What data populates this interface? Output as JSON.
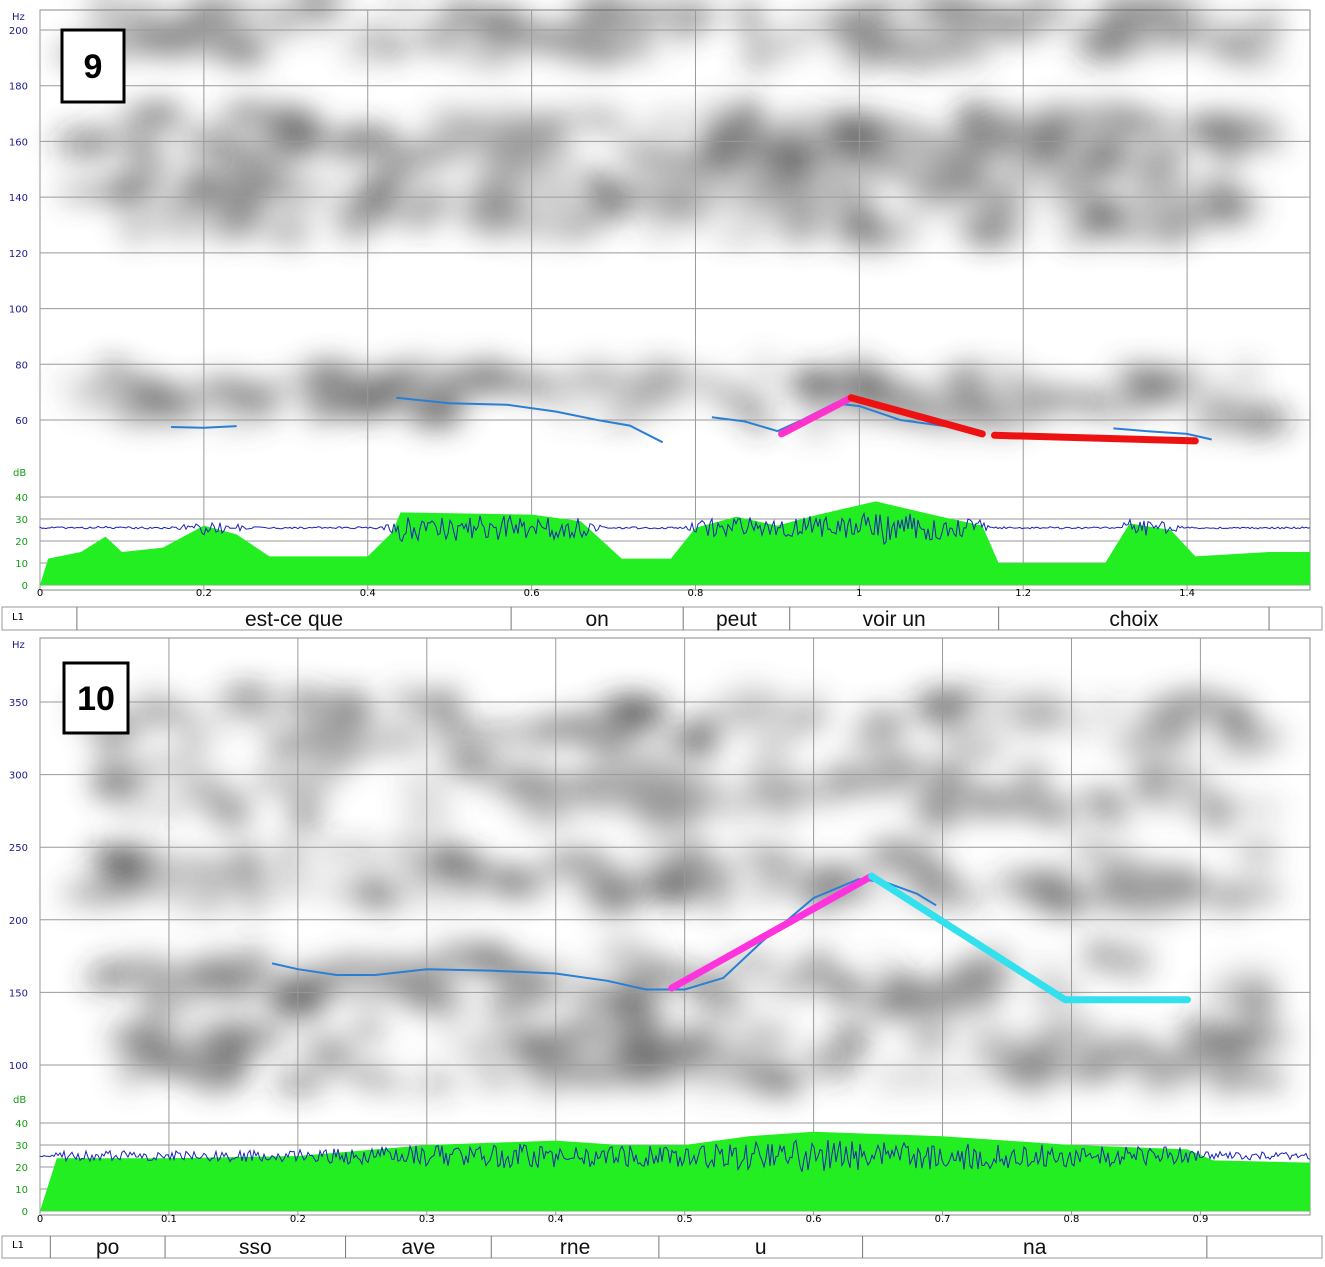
{
  "chart_data": [
    {
      "type": "line",
      "panel_label": "9",
      "xlim": [
        0,
        1.55
      ],
      "x_ticks": [
        "0",
        "0.2",
        "0.4",
        "0.6",
        "0.8",
        "1",
        "1.2",
        "1.4"
      ],
      "y_unit": "Hz",
      "ylim": [
        35,
        205
      ],
      "y_ticks": [
        "200",
        "180",
        "160",
        "140",
        "120",
        "100",
        "80",
        "60"
      ],
      "db_unit": "dB",
      "db_ticks": [
        "40",
        "30",
        "20",
        "10",
        "0"
      ],
      "track_label": "L1",
      "grid": true,
      "pitch_contour": [
        [
          [
            0.16,
            57.5
          ],
          [
            0.2,
            57.2
          ],
          [
            0.24,
            57.8
          ]
        ],
        [
          [
            0.435,
            68
          ],
          [
            0.5,
            66
          ],
          [
            0.57,
            65.5
          ],
          [
            0.63,
            63
          ],
          [
            0.68,
            60
          ],
          [
            0.72,
            58
          ],
          [
            0.76,
            52
          ]
        ],
        [
          [
            0.82,
            61
          ],
          [
            0.86,
            59.5
          ],
          [
            0.9,
            56
          ],
          [
            0.93,
            60
          ],
          [
            0.97,
            66
          ],
          [
            1.0,
            65
          ],
          [
            1.05,
            60
          ],
          [
            1.1,
            58
          ],
          [
            1.13,
            57
          ]
        ],
        [
          [
            1.31,
            57
          ],
          [
            1.35,
            56
          ],
          [
            1.4,
            55
          ],
          [
            1.43,
            53
          ]
        ]
      ],
      "stylized": [
        {
          "color": "#ff33cc",
          "points": [
            [
              0.905,
              55
            ],
            [
              0.99,
              68
            ]
          ]
        },
        {
          "color": "#ee1111",
          "points": [
            [
              0.99,
              68
            ],
            [
              1.15,
              55
            ]
          ]
        },
        {
          "color": "#ee1111",
          "points": [
            [
              1.165,
              54.5
            ],
            [
              1.41,
              52.5
            ]
          ]
        }
      ],
      "intensity_envelope": [
        [
          0,
          0
        ],
        [
          0.01,
          12
        ],
        [
          0.05,
          15
        ],
        [
          0.08,
          22
        ],
        [
          0.1,
          15
        ],
        [
          0.15,
          17
        ],
        [
          0.2,
          27
        ],
        [
          0.24,
          23
        ],
        [
          0.28,
          13
        ],
        [
          0.4,
          13
        ],
        [
          0.43,
          24
        ],
        [
          0.44,
          33
        ],
        [
          0.6,
          32
        ],
        [
          0.66,
          29
        ],
        [
          0.71,
          12
        ],
        [
          0.77,
          12
        ],
        [
          0.8,
          26
        ],
        [
          0.85,
          31
        ],
        [
          0.9,
          27
        ],
        [
          0.95,
          32
        ],
        [
          1.02,
          38
        ],
        [
          1.1,
          31
        ],
        [
          1.15,
          27
        ],
        [
          1.17,
          10
        ],
        [
          1.3,
          10
        ],
        [
          1.33,
          28
        ],
        [
          1.38,
          25
        ],
        [
          1.41,
          13
        ],
        [
          1.5,
          15
        ],
        [
          1.55,
          15
        ]
      ],
      "segments": [
        {
          "label": "est-ce que",
          "start": 0.045,
          "end": 0.575
        },
        {
          "label": "on",
          "start": 0.575,
          "end": 0.785
        },
        {
          "label": "peut",
          "start": 0.785,
          "end": 0.915
        },
        {
          "label": "voir un",
          "start": 0.915,
          "end": 1.17
        },
        {
          "label": "choix",
          "start": 1.17,
          "end": 1.5
        }
      ]
    },
    {
      "type": "line",
      "panel_label": "10",
      "xlim": [
        0,
        0.985
      ],
      "x_ticks": [
        "0",
        "0.1",
        "0.2",
        "0.3",
        "0.4",
        "0.5",
        "0.6",
        "0.7",
        "0.8",
        "0.9"
      ],
      "y_unit": "Hz",
      "ylim": [
        77,
        387
      ],
      "y_ticks": [
        "350",
        "300",
        "250",
        "200",
        "150",
        "100"
      ],
      "db_unit": "dB",
      "db_ticks": [
        "40",
        "30",
        "20",
        "10",
        "0"
      ],
      "track_label": "L1",
      "grid": true,
      "pitch_contour": [
        [
          [
            0.18,
            170
          ],
          [
            0.2,
            166
          ],
          [
            0.23,
            162
          ],
          [
            0.26,
            162
          ],
          [
            0.3,
            166
          ],
          [
            0.35,
            165
          ],
          [
            0.4,
            163
          ],
          [
            0.44,
            158
          ],
          [
            0.47,
            152
          ],
          [
            0.5,
            152
          ],
          [
            0.53,
            160
          ],
          [
            0.56,
            185
          ],
          [
            0.6,
            215
          ],
          [
            0.635,
            228
          ],
          [
            0.655,
            226
          ],
          [
            0.68,
            218
          ],
          [
            0.695,
            210
          ]
        ]
      ],
      "stylized": [
        {
          "color": "#ff33dd",
          "points": [
            [
              0.49,
              153
            ],
            [
              0.645,
              230
            ]
          ]
        },
        {
          "color": "#33e0ee",
          "points": [
            [
              0.645,
              230
            ],
            [
              0.795,
              145
            ],
            [
              0.89,
              145
            ]
          ]
        }
      ],
      "intensity_envelope": [
        [
          0,
          0
        ],
        [
          0.013,
          24
        ],
        [
          0.1,
          24
        ],
        [
          0.2,
          25
        ],
        [
          0.3,
          30
        ],
        [
          0.4,
          32
        ],
        [
          0.45,
          30
        ],
        [
          0.5,
          30
        ],
        [
          0.55,
          34
        ],
        [
          0.6,
          36
        ],
        [
          0.7,
          34
        ],
        [
          0.8,
          30
        ],
        [
          0.89,
          28
        ],
        [
          0.91,
          23
        ],
        [
          0.985,
          22
        ]
      ],
      "segments": [
        {
          "label": "po",
          "start": 0.008,
          "end": 0.097
        },
        {
          "label": "sso",
          "start": 0.097,
          "end": 0.237
        },
        {
          "label": "ave",
          "start": 0.237,
          "end": 0.35
        },
        {
          "label": "rne",
          "start": 0.35,
          "end": 0.48
        },
        {
          "label": "u",
          "start": 0.48,
          "end": 0.638
        },
        {
          "label": "na",
          "start": 0.638,
          "end": 0.905
        }
      ]
    }
  ]
}
